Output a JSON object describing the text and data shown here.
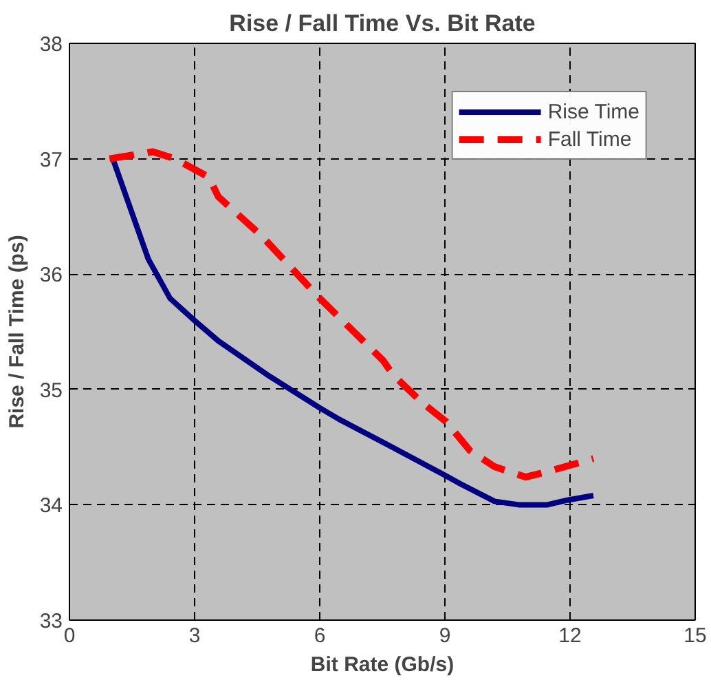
{
  "chart_data": {
    "type": "line",
    "title": "Rise / Fall Time Vs. Bit Rate",
    "xlabel": "Bit Rate (Gb/s)",
    "ylabel": "Rise / Fall Time (ps)",
    "xlim": [
      0,
      15
    ],
    "xticks": [
      0,
      3,
      6,
      9,
      12,
      15
    ],
    "ylim": [
      33,
      38
    ],
    "yticks": [
      33,
      34,
      35,
      36,
      37,
      38
    ],
    "grid": true,
    "legend": "top right",
    "marker": "none",
    "series": [
      {
        "name": "Rise Time",
        "color": "#000080",
        "line_style": "solid",
        "x": [
          1.04,
          1.89,
          2.41,
          2.99,
          3.57,
          4.73,
          6.0,
          6.47,
          7.63,
          9.03,
          9.38,
          10.19,
          10.77,
          11.46,
          11.93,
          12.56
        ],
        "values": [
          37.0,
          36.13,
          35.79,
          35.6,
          35.42,
          35.13,
          34.84,
          34.74,
          34.52,
          34.25,
          34.18,
          34.03,
          34.0,
          34.0,
          34.04,
          34.08
        ]
      },
      {
        "name": "Fall Time",
        "color": "#ff0000",
        "line_style": "dashed",
        "x": [
          0.96,
          2.0,
          2.53,
          3.34,
          3.57,
          4.61,
          6.0,
          7.52,
          7.75,
          8.44,
          9.03,
          9.6,
          10.19,
          10.94,
          11.58,
          12.56
        ],
        "values": [
          37.0,
          37.06,
          37.0,
          36.84,
          36.67,
          36.33,
          35.79,
          35.25,
          35.13,
          34.89,
          34.72,
          34.47,
          34.33,
          34.24,
          34.3,
          34.4
        ]
      }
    ]
  }
}
